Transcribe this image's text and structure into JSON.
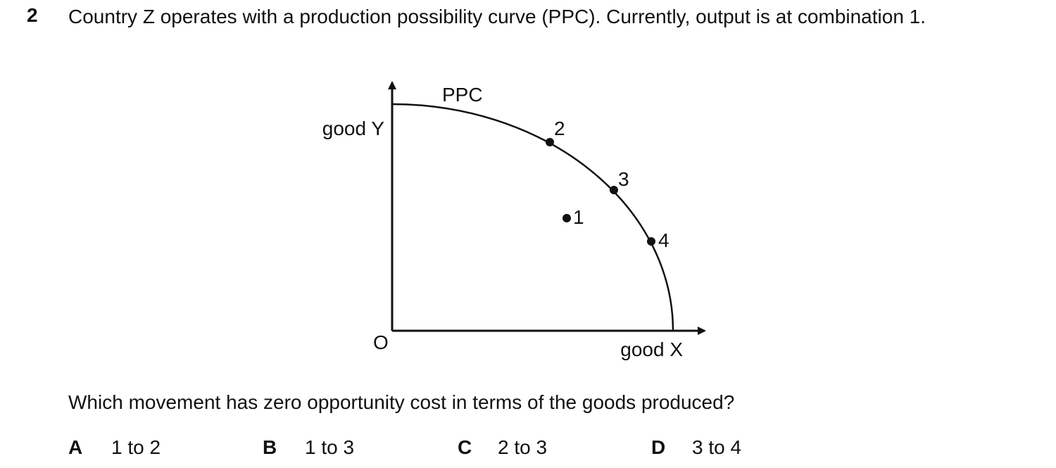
{
  "question": {
    "number": "2",
    "text": "Country Z operates with a production possibility curve (PPC). Currently, output is at combination 1."
  },
  "diagram": {
    "curve_label": "PPC",
    "y_axis_label": "good Y",
    "x_axis_label": "good X",
    "origin_label": "O",
    "points": [
      {
        "label": "1"
      },
      {
        "label": "2"
      },
      {
        "label": "3"
      },
      {
        "label": "4"
      }
    ]
  },
  "prompt": "Which movement has zero opportunity cost in terms of the goods produced?",
  "options": [
    {
      "letter": "A",
      "text": "1 to 2"
    },
    {
      "letter": "B",
      "text": "1 to 3"
    },
    {
      "letter": "C",
      "text": "2 to 3"
    },
    {
      "letter": "D",
      "text": "3 to 4"
    }
  ]
}
